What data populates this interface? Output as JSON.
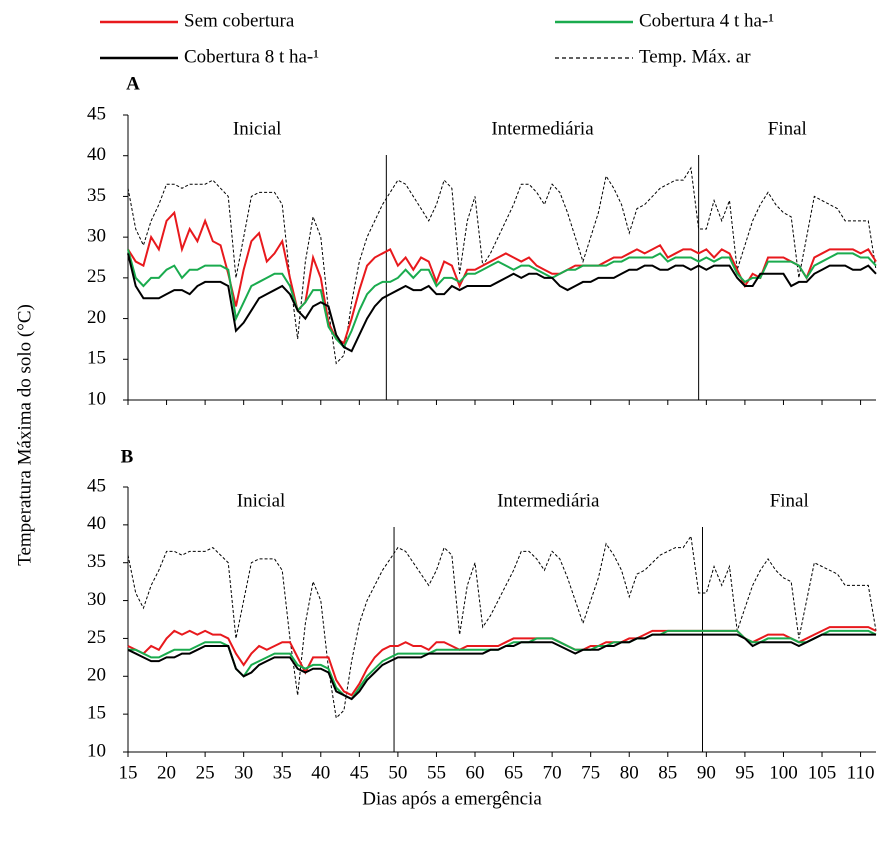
{
  "xlabel": "Dias após a emergência",
  "ylabel": "Temperatura Máxima  do solo (°C)",
  "chart_data": [
    {
      "type": "line",
      "panel": "A",
      "xlim": [
        15,
        112
      ],
      "ylim": [
        10,
        45
      ],
      "xticks": [
        15,
        20,
        25,
        30,
        35,
        40,
        45,
        50,
        55,
        60,
        65,
        70,
        75,
        80,
        85,
        90,
        95,
        100,
        105,
        110
      ],
      "yticks": [
        10,
        15,
        20,
        25,
        30,
        35,
        40,
        45
      ],
      "show_xtick_labels": false,
      "dividers": [
        48.5,
        89
      ],
      "annotations": [
        "Inicial",
        "Intermediária",
        "Final"
      ],
      "x": [
        15,
        16,
        17,
        18,
        19,
        20,
        21,
        22,
        23,
        24,
        25,
        26,
        27,
        28,
        29,
        30,
        31,
        32,
        33,
        34,
        35,
        36,
        37,
        38,
        39,
        40,
        41,
        42,
        43,
        44,
        45,
        46,
        47,
        48,
        49,
        50,
        51,
        52,
        53,
        54,
        55,
        56,
        57,
        58,
        59,
        60,
        61,
        62,
        63,
        64,
        65,
        66,
        67,
        68,
        69,
        70,
        71,
        72,
        73,
        74,
        75,
        76,
        77,
        78,
        79,
        80,
        81,
        82,
        83,
        84,
        85,
        86,
        87,
        88,
        89,
        90,
        91,
        92,
        93,
        94,
        95,
        96,
        97,
        98,
        99,
        100,
        101,
        102,
        103,
        104,
        105,
        106,
        107,
        108,
        109,
        110,
        111,
        112
      ],
      "series": [
        {
          "name": "Sem cobertura",
          "color": "#e8191d",
          "linestyle": "solid",
          "values": [
            28.5,
            27,
            26.5,
            30,
            28.5,
            32,
            33,
            28.5,
            31,
            29.5,
            32,
            29.5,
            29,
            25.5,
            21.5,
            26,
            29.5,
            30.5,
            27,
            28,
            29.5,
            25,
            21,
            22,
            27.5,
            25,
            19.5,
            17.5,
            17,
            20,
            23.5,
            26.5,
            27.5,
            28,
            28.5,
            26.5,
            27.5,
            26,
            27.5,
            27,
            24.5,
            27,
            26.5,
            24,
            26,
            26,
            26.5,
            27,
            27.5,
            28,
            27.5,
            27,
            27.5,
            26.5,
            26,
            25.5,
            25.5,
            26,
            26.5,
            26.5,
            26.5,
            26.5,
            27,
            27.5,
            27.5,
            28,
            28.5,
            28,
            28.5,
            29,
            27.5,
            28,
            28.5,
            28.5,
            28,
            28.5,
            27.5,
            28.5,
            28,
            26,
            24,
            25.5,
            25,
            27.5,
            27.5,
            27.5,
            27,
            26.5,
            25,
            27.5,
            28,
            28.5,
            28.5,
            28.5,
            28.5,
            28,
            28.5,
            27
          ]
        },
        {
          "name": "Cobertura 4 t ha-¹",
          "color": "#1aab4e",
          "linestyle": "solid",
          "values": [
            28.5,
            25,
            24,
            25,
            25,
            26,
            26.5,
            25,
            26,
            26,
            26.5,
            26.5,
            26.5,
            26,
            20,
            22,
            24,
            24.5,
            25,
            25.5,
            25.5,
            24,
            21,
            22,
            23.5,
            23.5,
            19,
            17.5,
            16.5,
            18.5,
            21,
            23,
            24,
            24.5,
            24.5,
            25,
            26,
            25,
            26,
            26,
            24,
            25,
            25,
            24.5,
            25.5,
            25.5,
            26,
            26.5,
            27,
            26.5,
            26,
            26.5,
            26.5,
            26,
            25.5,
            25,
            25.5,
            26,
            26,
            26.5,
            26.5,
            26.5,
            26.5,
            27,
            27,
            27.5,
            27.5,
            27.5,
            27.5,
            28,
            27,
            27.5,
            27.5,
            27.5,
            27,
            27.5,
            27,
            27.5,
            27.5,
            25.5,
            24.5,
            25,
            25,
            27,
            27,
            27,
            27,
            26.5,
            25,
            26.5,
            27,
            27.5,
            28,
            28,
            28,
            27.5,
            27.5,
            26.5
          ]
        },
        {
          "name": "Cobertura 8 t ha-¹",
          "color": "#000000",
          "linestyle": "solid",
          "values": [
            28,
            24,
            22.5,
            22.5,
            22.5,
            23,
            23.5,
            23.5,
            23,
            24,
            24.5,
            24.5,
            24.5,
            24,
            18.5,
            19.5,
            21,
            22.5,
            23,
            23.5,
            24,
            23,
            21,
            20,
            21.5,
            22,
            21.5,
            18,
            16.5,
            16,
            18,
            20,
            21.5,
            22.5,
            23,
            23.5,
            24,
            23.5,
            23.5,
            24,
            23,
            23,
            24,
            23.5,
            24,
            24,
            24,
            24,
            24.5,
            25,
            25.5,
            25,
            25.5,
            25.5,
            25,
            25,
            24,
            23.5,
            24,
            24.5,
            24.5,
            25,
            25,
            25,
            25.5,
            26,
            26,
            26.5,
            26.5,
            26,
            26,
            26.5,
            26.5,
            26,
            26.5,
            26,
            26.5,
            26.5,
            26.5,
            25,
            24,
            24,
            25.5,
            25.5,
            25.5,
            25.5,
            24,
            24.5,
            24.5,
            25.5,
            26,
            26.5,
            26.5,
            26.5,
            26,
            26,
            26.5,
            25.5
          ]
        },
        {
          "name": "Temp. Máx. ar",
          "color": "#000000",
          "linestyle": "dashed",
          "values": [
            36,
            31,
            29,
            32,
            34,
            36.5,
            36.5,
            36,
            36.5,
            36.5,
            36.5,
            37,
            36,
            35,
            25,
            30,
            35,
            35.5,
            35.5,
            35.5,
            34,
            25,
            17.5,
            27,
            32.5,
            30,
            21,
            14.5,
            15.5,
            22,
            27,
            30,
            32,
            34,
            35.5,
            37,
            36.5,
            35,
            33.5,
            32,
            34,
            37,
            36,
            25.5,
            32,
            35,
            26.5,
            28,
            30,
            32,
            34,
            36.5,
            36.5,
            35.5,
            34,
            36.5,
            35.5,
            33,
            30,
            27,
            30,
            33,
            37.5,
            36,
            34,
            30.5,
            33.5,
            34,
            35,
            36,
            36.5,
            37,
            37,
            38.5,
            31,
            31,
            34.5,
            32,
            34.5,
            26,
            29,
            32,
            34,
            35.5,
            34,
            33,
            32.5,
            25,
            30,
            35,
            34.5,
            34,
            33.5,
            32,
            32,
            32,
            32,
            26
          ]
        }
      ]
    },
    {
      "type": "line",
      "panel": "B",
      "xlim": [
        15,
        112
      ],
      "ylim": [
        10,
        45
      ],
      "xticks": [
        15,
        20,
        25,
        30,
        35,
        40,
        45,
        50,
        55,
        60,
        65,
        70,
        75,
        80,
        85,
        90,
        95,
        100,
        105,
        110
      ],
      "yticks": [
        10,
        15,
        20,
        25,
        30,
        35,
        40,
        45
      ],
      "show_xtick_labels": true,
      "dividers": [
        49.5,
        89.5
      ],
      "annotations": [
        "Inicial",
        "Intermediária",
        "Final"
      ],
      "x": [
        15,
        16,
        17,
        18,
        19,
        20,
        21,
        22,
        23,
        24,
        25,
        26,
        27,
        28,
        29,
        30,
        31,
        32,
        33,
        34,
        35,
        36,
        37,
        38,
        39,
        40,
        41,
        42,
        43,
        44,
        45,
        46,
        47,
        48,
        49,
        50,
        51,
        52,
        53,
        54,
        55,
        56,
        57,
        58,
        59,
        60,
        61,
        62,
        63,
        64,
        65,
        66,
        67,
        68,
        69,
        70,
        71,
        72,
        73,
        74,
        75,
        76,
        77,
        78,
        79,
        80,
        81,
        82,
        83,
        84,
        85,
        86,
        87,
        88,
        89,
        90,
        91,
        92,
        93,
        94,
        95,
        96,
        97,
        98,
        99,
        100,
        101,
        102,
        103,
        104,
        105,
        106,
        107,
        108,
        109,
        110,
        111,
        112
      ],
      "series": [
        {
          "name": "Sem cobertura",
          "color": "#e8191d",
          "linestyle": "solid",
          "values": [
            24,
            23.5,
            23,
            24,
            23.5,
            25,
            26,
            25.5,
            26,
            25.5,
            26,
            25.5,
            25.5,
            25,
            23,
            21.5,
            23,
            24,
            23.5,
            24,
            24.5,
            24.5,
            22.5,
            20.5,
            22.5,
            22.5,
            22.5,
            19.5,
            18,
            17.5,
            19,
            21,
            22.5,
            23.5,
            24,
            24,
            24.5,
            24,
            24,
            23.5,
            24.5,
            24.5,
            24,
            23.5,
            24,
            24,
            24,
            24,
            24,
            24.5,
            25,
            25,
            25,
            25,
            25,
            25,
            24.5,
            24,
            23.5,
            23.5,
            24,
            24,
            24.5,
            24.5,
            24.5,
            25,
            25,
            25.5,
            26,
            26,
            26,
            26,
            26,
            26,
            26,
            26,
            26,
            26,
            26,
            26,
            25,
            24.5,
            25,
            25.5,
            25.5,
            25.5,
            25,
            24.5,
            25,
            25.5,
            26,
            26.5,
            26.5,
            26.5,
            26.5,
            26.5,
            26.5,
            26
          ]
        },
        {
          "name": "Cobertura 4 t ha-¹",
          "color": "#1aab4e",
          "linestyle": "solid",
          "values": [
            23.5,
            23.5,
            23,
            22.5,
            22.5,
            23,
            23.5,
            23.5,
            23.5,
            24,
            24.5,
            24.5,
            24.5,
            24,
            21,
            20,
            21.5,
            22,
            22.5,
            23,
            23,
            23,
            21.5,
            21,
            21.5,
            21.5,
            21,
            18.5,
            17.5,
            17,
            18.5,
            20,
            21,
            22,
            22.5,
            23,
            23,
            23,
            23,
            23,
            23.5,
            23.5,
            23.5,
            23.5,
            23.5,
            23.5,
            23.5,
            23.5,
            23.5,
            24,
            24.5,
            24.5,
            24.5,
            25,
            25,
            25,
            24.5,
            24,
            23.5,
            23.5,
            23.5,
            24,
            24,
            24.5,
            24.5,
            24.5,
            25,
            25,
            25.5,
            25.5,
            26,
            26,
            26,
            26,
            26,
            26,
            26,
            26,
            26,
            26,
            25,
            24.5,
            24.5,
            25,
            25,
            25,
            25,
            24.5,
            24.5,
            25,
            25.5,
            26,
            26,
            26,
            26,
            26,
            26,
            25.5
          ]
        },
        {
          "name": "Cobertura 8 t ha-¹",
          "color": "#000000",
          "linestyle": "solid",
          "values": [
            23.5,
            23,
            22.5,
            22,
            22,
            22.5,
            22.5,
            23,
            23,
            23.5,
            24,
            24,
            24,
            24,
            21,
            20,
            20.5,
            21.5,
            22,
            22.5,
            22.5,
            22.5,
            21,
            20.5,
            21,
            21,
            20.5,
            18,
            17.5,
            17,
            18,
            19.5,
            20.5,
            21.5,
            22,
            22.5,
            22.5,
            22.5,
            22.5,
            23,
            23,
            23,
            23,
            23,
            23,
            23,
            23,
            23.5,
            23.5,
            24,
            24,
            24.5,
            24.5,
            24.5,
            24.5,
            24.5,
            24,
            23.5,
            23,
            23.5,
            23.5,
            23.5,
            24,
            24,
            24.5,
            24.5,
            25,
            25,
            25.5,
            25.5,
            25.5,
            25.5,
            25.5,
            25.5,
            25.5,
            25.5,
            25.5,
            25.5,
            25.5,
            25.5,
            25,
            24,
            24.5,
            24.5,
            24.5,
            24.5,
            24.5,
            24,
            24.5,
            25,
            25.5,
            25.5,
            25.5,
            25.5,
            25.5,
            25.5,
            25.5,
            25.5
          ]
        },
        {
          "name": "Temp. Máx. ar",
          "color": "#000000",
          "linestyle": "dashed",
          "values": [
            36,
            31,
            29,
            32,
            34,
            36.5,
            36.5,
            36,
            36.5,
            36.5,
            36.5,
            37,
            36,
            35,
            25,
            30,
            35,
            35.5,
            35.5,
            35.5,
            34,
            25,
            17.5,
            27,
            32.5,
            30,
            21,
            14.5,
            15.5,
            22,
            27,
            30,
            32,
            34,
            35.5,
            37,
            36.5,
            35,
            33.5,
            32,
            34,
            37,
            36,
            25.5,
            32,
            35,
            26.5,
            28,
            30,
            32,
            34,
            36.5,
            36.5,
            35.5,
            34,
            36.5,
            35.5,
            33,
            30,
            27,
            30,
            33,
            37.5,
            36,
            34,
            30.5,
            33.5,
            34,
            35,
            36,
            36.5,
            37,
            37,
            38.5,
            31,
            31,
            34.5,
            32,
            34.5,
            26,
            29,
            32,
            34,
            35.5,
            34,
            33,
            32.5,
            25,
            30,
            35,
            34.5,
            34,
            33.5,
            32,
            32,
            32,
            32,
            26
          ]
        }
      ]
    }
  ]
}
